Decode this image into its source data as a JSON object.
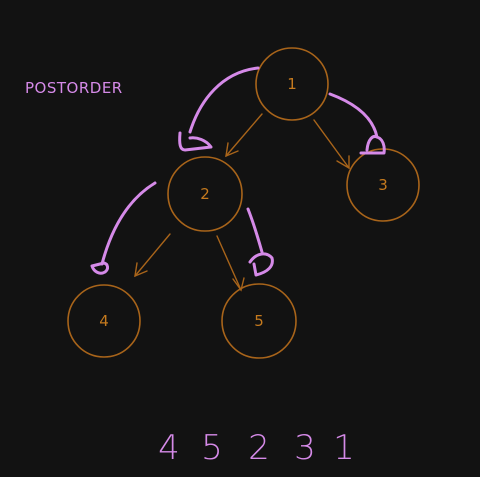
{
  "title": "POSTORDER",
  "nodes": [
    {
      "id": "n1",
      "label": "1"
    },
    {
      "id": "n2",
      "label": "2"
    },
    {
      "id": "n3",
      "label": "3"
    },
    {
      "id": "n4",
      "label": "4"
    },
    {
      "id": "n5",
      "label": "5"
    }
  ],
  "edges": [
    {
      "from": "1",
      "to": "2"
    },
    {
      "from": "1",
      "to": "3"
    },
    {
      "from": "2",
      "to": "4"
    },
    {
      "from": "2",
      "to": "5"
    }
  ],
  "sequence": [
    "4",
    "5",
    "2",
    "3",
    "1"
  ],
  "colors": {
    "background": "#121212",
    "tree": "#a8641a",
    "node_text": "#c57a1e",
    "traversal": "#d58ae8"
  }
}
